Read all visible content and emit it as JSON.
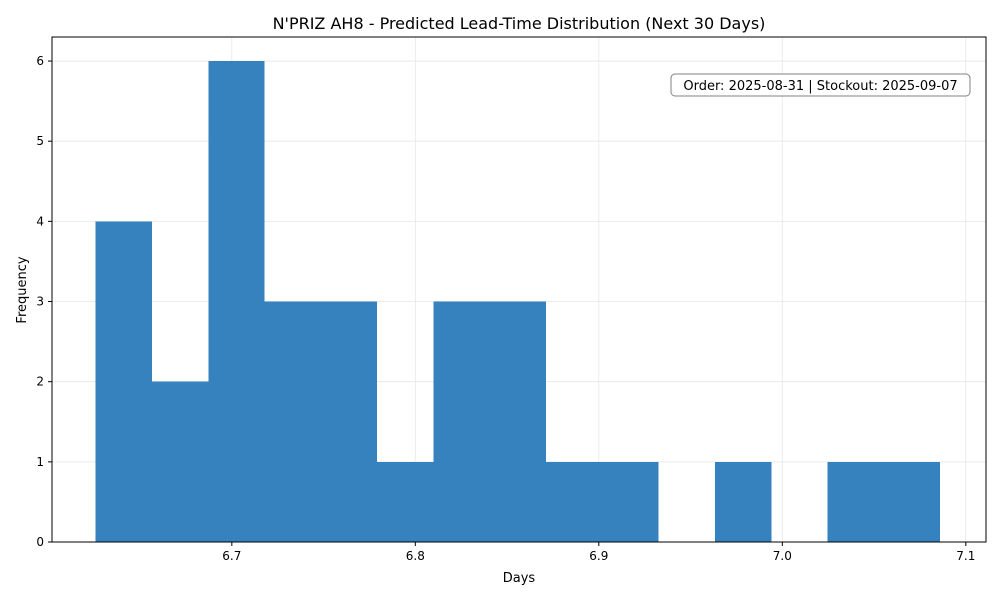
{
  "chart_data": {
    "type": "bar",
    "subtype": "histogram",
    "title": "N'PRIZ AH8 - Predicted Lead-Time Distribution (Next 30 Days)",
    "xlabel": "Days",
    "ylabel": "Frequency",
    "xlim": [
      6.602,
      7.111
    ],
    "ylim": [
      0,
      6.3
    ],
    "xticks": [
      6.7,
      6.8,
      6.9,
      7.0,
      7.1
    ],
    "xtick_labels": [
      "6.7",
      "6.8",
      "6.9",
      "7.0",
      "7.1"
    ],
    "yticks": [
      0,
      1,
      2,
      3,
      4,
      5,
      6
    ],
    "ytick_labels": [
      "0",
      "1",
      "2",
      "3",
      "4",
      "5",
      "6"
    ],
    "grid": true,
    "bar_color": "#3582bf",
    "bin_edges": [
      6.6258,
      6.6565,
      6.6872,
      6.7178,
      6.7485,
      6.7792,
      6.8099,
      6.8406,
      6.8712,
      6.9019,
      6.9326,
      6.9633,
      6.994,
      7.0246,
      7.0553,
      7.086
    ],
    "values": [
      4,
      2,
      6,
      3,
      3,
      1,
      3,
      3,
      1,
      1,
      0,
      1,
      0,
      1,
      1
    ],
    "annotation": "Order: 2025-08-31 | Stockout: 2025-09-07"
  }
}
